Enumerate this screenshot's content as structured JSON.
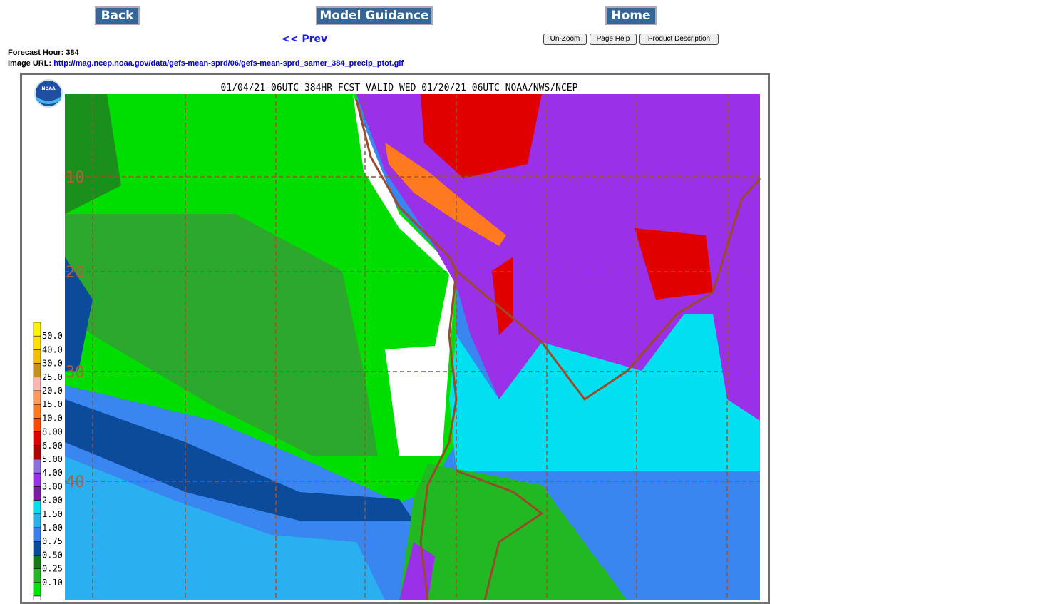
{
  "nav": {
    "back": "Back",
    "model_guidance": "Model Guidance",
    "home": "Home",
    "prev": "<< Prev",
    "buttons": [
      "Un-Zoom",
      "Page Help",
      "Product Description"
    ]
  },
  "info": {
    "forecast_hour_label": "Forecast Hour:",
    "forecast_hour": "384",
    "image_url_label": "Image URL:",
    "image_url": "http://mag.ncep.noaa.gov/data/gefs-mean-sprd/06/gefs-mean-sprd_samer_384_precip_ptot.gif"
  },
  "map": {
    "title": "01/04/21 06UTC 384HR FCST VALID WED 01/20/21 06UTC NOAA/NWS/NCEP",
    "logo": "NOAA",
    "lat_labels": [
      "10",
      "20",
      "30",
      "40"
    ],
    "legend_labels": [
      "50.0",
      "40.0",
      "30.0",
      "25.0",
      "20.0",
      "15.0",
      "10.0",
      "8.00",
      "6.00",
      "5.00",
      "4.00",
      "3.00",
      "2.00",
      "1.50",
      "1.00",
      "0.75",
      "0.50",
      "0.25",
      "0.10"
    ],
    "legend_colors": [
      "#fff200",
      "#ffe000",
      "#f0c000",
      "#c89018",
      "#ffb4b4",
      "#ff9a5a",
      "#ff7a1e",
      "#ff4a00",
      "#e00000",
      "#b00000",
      "#8c70e0",
      "#9a30e8",
      "#7a1aa8",
      "#00e0f0",
      "#2ab0f0",
      "#3a7ef0",
      "#0c4a9a",
      "#157a15",
      "#22b822",
      "#00e800",
      "#ffffff"
    ]
  }
}
